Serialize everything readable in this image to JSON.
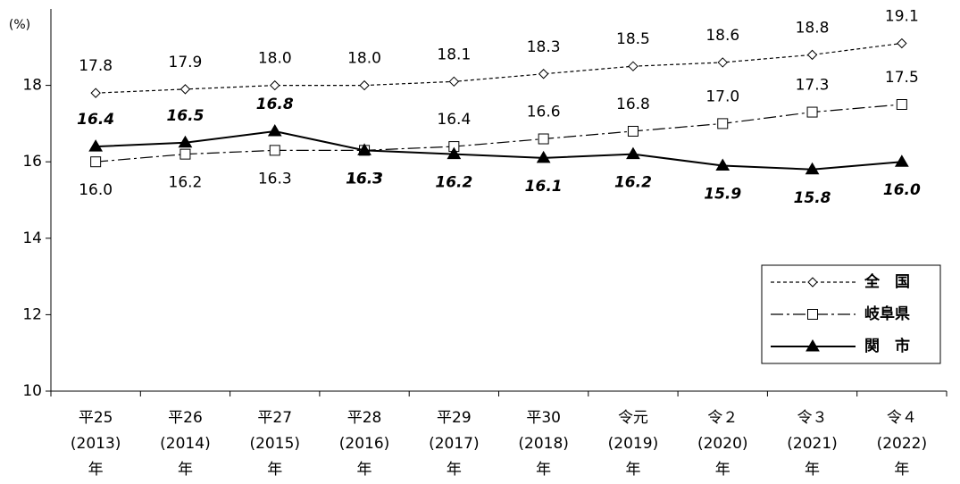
{
  "chart_data": {
    "type": "line",
    "y_label": "(%)",
    "categories": [
      [
        "平25",
        "(2013)",
        "年"
      ],
      [
        "平26",
        "(2014)",
        "年"
      ],
      [
        "平27",
        "(2015)",
        "年"
      ],
      [
        "平28",
        "(2016)",
        "年"
      ],
      [
        "平29",
        "(2017)",
        "年"
      ],
      [
        "平30",
        "(2018)",
        "年"
      ],
      [
        "令元",
        "(2019)",
        "年"
      ],
      [
        "令２",
        "(2020)",
        "年"
      ],
      [
        "令３",
        "(2021)",
        "年"
      ],
      [
        "令４",
        "(2022)",
        "年"
      ]
    ],
    "series": [
      {
        "name": "全　国",
        "color": "#000000",
        "values": [
          17.8,
          17.9,
          18.0,
          18.0,
          18.1,
          18.3,
          18.5,
          18.6,
          18.8,
          19.1
        ]
      },
      {
        "name": "岐阜県",
        "color": "#000000",
        "values": [
          16.0,
          16.2,
          16.3,
          16.3,
          16.4,
          16.6,
          16.8,
          17.0,
          17.3,
          17.5
        ]
      },
      {
        "name": "関　市",
        "color": "#000000",
        "values": [
          16.4,
          16.5,
          16.8,
          16.3,
          16.2,
          16.1,
          16.2,
          15.9,
          15.8,
          16.0
        ]
      }
    ],
    "ylim": [
      10,
      20
    ],
    "yticks": [
      10,
      12,
      14,
      16,
      18
    ],
    "legend": "lower right"
  }
}
